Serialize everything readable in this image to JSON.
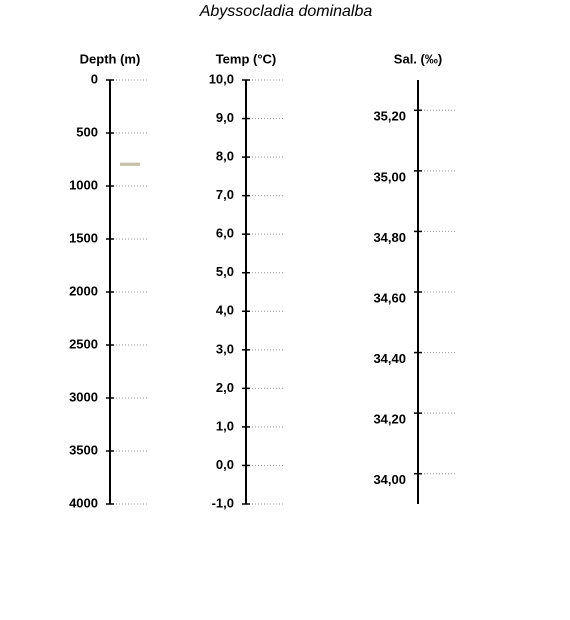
{
  "chart_data": [
    {
      "type": "range",
      "title": "Abyssocladia dominalba",
      "ylabel": "Depth (m)",
      "ylim": [
        4000,
        0
      ],
      "yticks": [
        0,
        500,
        1000,
        1500,
        2000,
        2500,
        3000,
        3500,
        4000
      ],
      "values": [
        [
          780,
          810
        ]
      ],
      "color": "#c8c0a8",
      "grid": true
    },
    {
      "type": "axis",
      "ylabel": "Temp (°C)",
      "ylim": [
        -1,
        10
      ],
      "yticks": [
        {
          "value": -1,
          "label": "-1,0"
        },
        {
          "value": 0,
          "label": "0,0"
        },
        {
          "value": 1,
          "label": "1,0"
        },
        {
          "value": 2,
          "label": "2,0"
        },
        {
          "value": 3,
          "label": "3,0"
        },
        {
          "value": 4,
          "label": "4,0"
        },
        {
          "value": 5,
          "label": "5,0"
        },
        {
          "value": 6,
          "label": "6,0"
        },
        {
          "value": 7,
          "label": "7,0"
        },
        {
          "value": 8,
          "label": "8,0"
        },
        {
          "value": 9,
          "label": "9,0"
        },
        {
          "value": 10,
          "label": "10,0"
        }
      ],
      "grid": true
    },
    {
      "type": "axis",
      "ylabel": "Sal. (‰)",
      "ylim": [
        33.9,
        35.3
      ],
      "yticks": [
        {
          "value": 34.0,
          "label": "34,00"
        },
        {
          "value": 34.2,
          "label": "34,20"
        },
        {
          "value": 34.4,
          "label": "34,40"
        },
        {
          "value": 34.6,
          "label": "34,60"
        },
        {
          "value": 34.8,
          "label": "34,80"
        },
        {
          "value": 35.0,
          "label": "35,00"
        },
        {
          "value": 35.2,
          "label": "35,20"
        }
      ],
      "grid": true
    }
  ]
}
